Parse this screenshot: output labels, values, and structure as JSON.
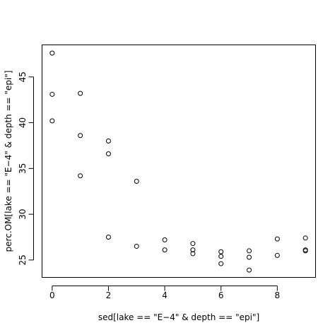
{
  "chart_data": {
    "type": "scatter",
    "xlabel": "sed[lake == \"E−4\" & depth == \"epi\"]",
    "ylabel": "perc.OM[lake == \"E−4\" & depth == \"epi\"]",
    "xlim": [
      -0.36,
      9.36
    ],
    "ylim": [
      23.1,
      48.5
    ],
    "xticks": [
      0,
      2,
      4,
      6,
      8
    ],
    "yticks": [
      25,
      30,
      35,
      40,
      45
    ],
    "xtick_labels": [
      "0",
      "2",
      "4",
      "6",
      "8"
    ],
    "ytick_labels": [
      "25",
      "30",
      "35",
      "40",
      "45"
    ],
    "grid": false,
    "marker": "open-circle",
    "x": [
      0,
      0,
      0,
      1,
      1,
      1,
      2,
      2,
      2,
      3,
      3,
      4,
      4,
      5,
      5,
      5,
      6,
      6,
      6,
      7,
      7,
      7,
      8,
      8,
      9,
      9,
      9
    ],
    "y": [
      47.6,
      43.1,
      40.2,
      43.2,
      38.6,
      34.2,
      38.0,
      36.6,
      27.5,
      33.6,
      26.5,
      27.2,
      26.1,
      26.8,
      26.1,
      25.7,
      25.9,
      25.4,
      24.6,
      26.0,
      25.3,
      23.9,
      27.3,
      25.5,
      27.4,
      26.1,
      26.0
    ]
  }
}
